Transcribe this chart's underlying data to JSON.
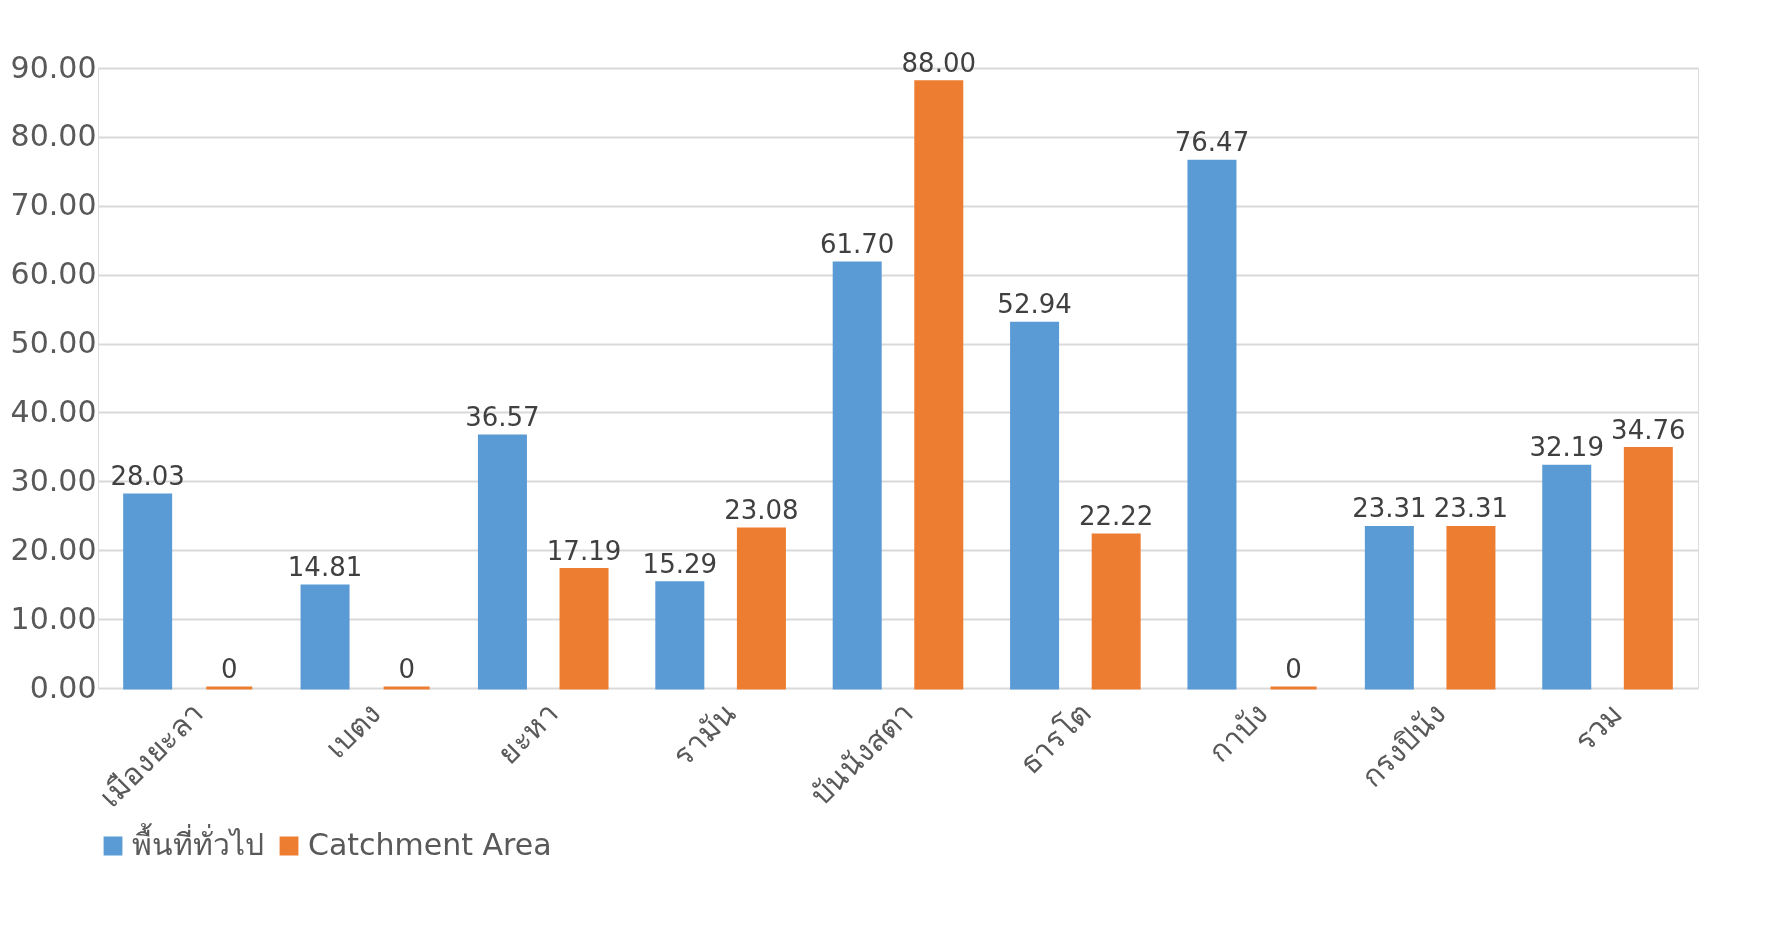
{
  "chart_data": {
    "type": "bar",
    "categories": [
      "เมืองยะลา",
      "เบตง",
      "ยะหา",
      "รามัน",
      "บันนังสตา",
      "ธารโต",
      "กาบัง",
      "กรงปินัง",
      "รวม"
    ],
    "series": [
      {
        "name": "พื้นที่ทั่วไป",
        "color": "#5b9bd5",
        "values": [
          28.03,
          14.81,
          36.57,
          15.29,
          61.7,
          52.94,
          76.47,
          23.31,
          32.19
        ],
        "value_labels": [
          "28.03",
          "14.81",
          "36.57",
          "15.29",
          "61.70",
          "52.94",
          "76.47",
          "23.31",
          "32.19"
        ]
      },
      {
        "name": "Catchment Area",
        "color": "#ed7d31",
        "values": [
          0,
          0,
          17.19,
          23.08,
          88.0,
          22.22,
          0,
          23.31,
          34.76
        ],
        "value_labels": [
          "0",
          "0",
          "17.19",
          "23.08",
          "88.00",
          "22.22",
          "0",
          "23.31",
          "34.76"
        ]
      }
    ],
    "ylim": [
      0,
      90
    ],
    "yticks": [
      {
        "value": 0,
        "label": "0.00"
      },
      {
        "value": 10,
        "label": "10.00"
      },
      {
        "value": 20,
        "label": "20.00"
      },
      {
        "value": 30,
        "label": "30.00"
      },
      {
        "value": 40,
        "label": "40.00"
      },
      {
        "value": 50,
        "label": "50.00"
      },
      {
        "value": 60,
        "label": "60.00"
      },
      {
        "value": 70,
        "label": "70.00"
      },
      {
        "value": 80,
        "label": "80.00"
      },
      {
        "value": 90,
        "label": "90.00"
      }
    ],
    "grid": "y",
    "legend": "bottom"
  }
}
